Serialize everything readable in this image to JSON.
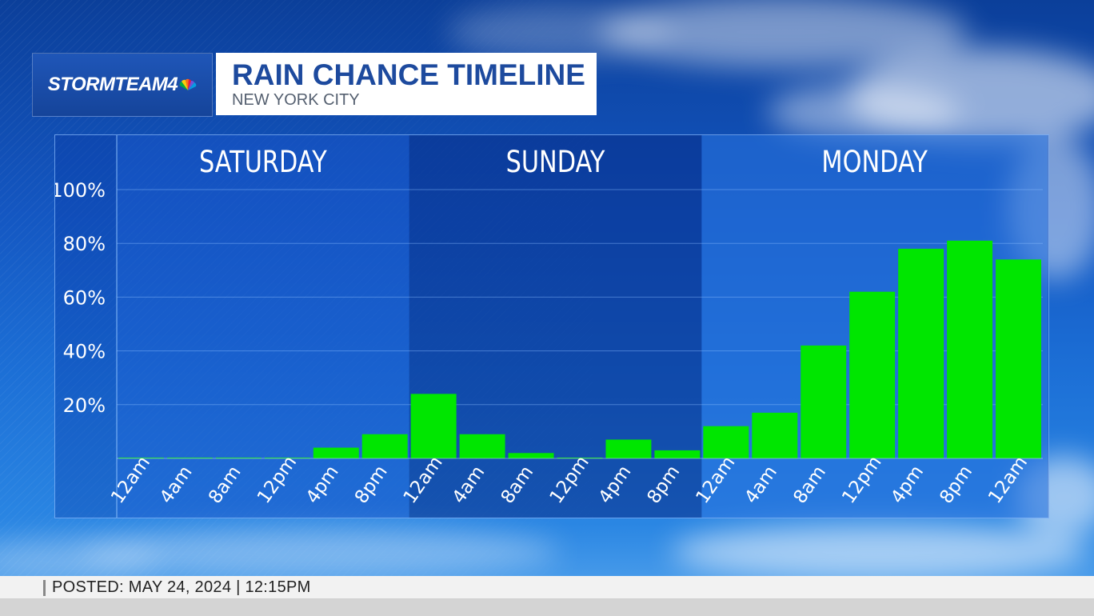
{
  "branding": {
    "logo_text": "STORMTEAM4"
  },
  "header": {
    "title": "RAIN CHANCE TIMELINE",
    "subtitle": "NEW YORK CITY"
  },
  "footer": {
    "posted": "POSTED:  MAY 24, 2024   |   12:15PM"
  },
  "colors": {
    "bar": "#00e600",
    "accent": "#1d4a9e"
  },
  "chart_data": {
    "type": "bar",
    "title": "RAIN CHANCE TIMELINE",
    "subtitle": "NEW YORK CITY",
    "days": [
      "SATURDAY",
      "SUNDAY",
      "MONDAY"
    ],
    "categories": [
      "12am",
      "4am",
      "8am",
      "12pm",
      "4pm",
      "8pm",
      "12am",
      "4am",
      "8am",
      "12pm",
      "4pm",
      "8pm",
      "12am",
      "4am",
      "8am",
      "12pm",
      "4pm",
      "8pm",
      "12am"
    ],
    "values": [
      0,
      0,
      0,
      0,
      4,
      9,
      24,
      9,
      2,
      0,
      7,
      3,
      12,
      17,
      42,
      62,
      78,
      81,
      74
    ],
    "ylim": [
      0,
      100
    ],
    "yticks": [
      "20%",
      "40%",
      "60%",
      "80%",
      "100%"
    ],
    "grid": true,
    "legend": "none"
  }
}
